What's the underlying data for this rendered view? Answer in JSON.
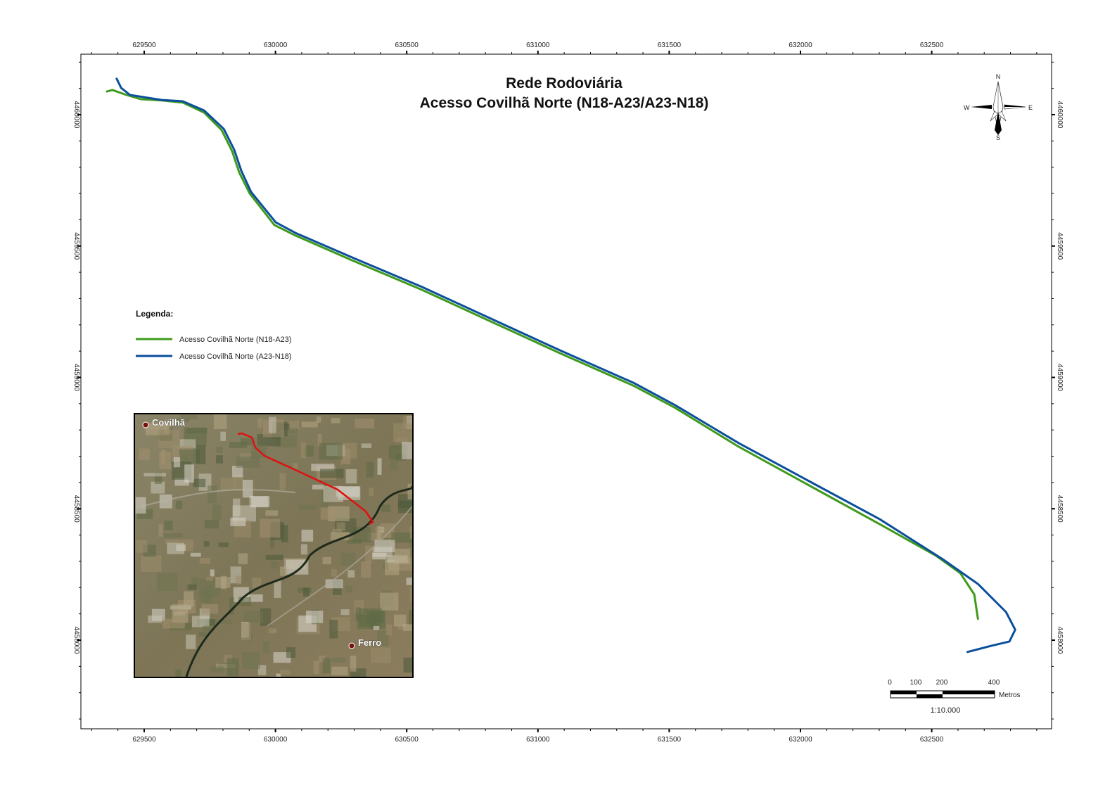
{
  "title": {
    "line1": "Rede Rodoviária",
    "line2": "Acesso Covilhã Norte (N18-A23/A23-N18)"
  },
  "axes": {
    "x_ticks": [
      629500,
      630000,
      630500,
      631000,
      631500,
      632000,
      632500
    ],
    "y_ticks": [
      4460000,
      4459500,
      4459000,
      4458500,
      4458000
    ],
    "x_labels": [
      "629500",
      "630000",
      "630500",
      "631000",
      "631500",
      "632000",
      "632500"
    ],
    "y_labels": [
      "4460000",
      "4459500",
      "4459000",
      "4458500",
      "4458000"
    ],
    "minor_interval": 100
  },
  "legend": {
    "title": "Legenda:",
    "items": [
      {
        "label": "Acesso Covilhã Norte (N18-A23)",
        "color": "#3f9a1c"
      },
      {
        "label": "Acesso Covilhã Norte (A23-N18)",
        "color": "#0b4f9c"
      }
    ]
  },
  "routes": [
    {
      "name": "N18-A23",
      "color": "#3f9a1c",
      "coords": [
        [
          629358,
          4460088
        ],
        [
          629379,
          4460094
        ],
        [
          629433,
          4460075
        ],
        [
          629487,
          4460059
        ],
        [
          629567,
          4460054
        ],
        [
          629647,
          4460046
        ],
        [
          629728,
          4460008
        ],
        [
          629795,
          4459941
        ],
        [
          629835,
          4459861
        ],
        [
          629862,
          4459780
        ],
        [
          629902,
          4459700
        ],
        [
          629996,
          4459580
        ],
        [
          630076,
          4459540
        ],
        [
          630291,
          4459446
        ],
        [
          630559,
          4459333
        ],
        [
          630827,
          4459210
        ],
        [
          631095,
          4459087
        ],
        [
          631363,
          4458969
        ],
        [
          631523,
          4458884
        ],
        [
          631765,
          4458736
        ],
        [
          632033,
          4458589
        ],
        [
          632301,
          4458442
        ],
        [
          632515,
          4458322
        ],
        [
          632609,
          4458255
        ],
        [
          632662,
          4458174
        ],
        [
          632676,
          4458081
        ]
      ]
    },
    {
      "name": "A23-N18",
      "color": "#0b4f9c",
      "coords": [
        [
          629395,
          4460137
        ],
        [
          629412,
          4460102
        ],
        [
          629446,
          4460075
        ],
        [
          629567,
          4460056
        ],
        [
          629647,
          4460051
        ],
        [
          629728,
          4460016
        ],
        [
          629803,
          4459946
        ],
        [
          629843,
          4459866
        ],
        [
          629870,
          4459786
        ],
        [
          629907,
          4459706
        ],
        [
          630001,
          4459590
        ],
        [
          630076,
          4459550
        ],
        [
          630291,
          4459457
        ],
        [
          630559,
          4459344
        ],
        [
          630827,
          4459221
        ],
        [
          631095,
          4459098
        ],
        [
          631363,
          4458980
        ],
        [
          631523,
          4458894
        ],
        [
          631765,
          4458750
        ],
        [
          632033,
          4458605
        ],
        [
          632301,
          4458461
        ],
        [
          632542,
          4458308
        ],
        [
          632676,
          4458214
        ],
        [
          632783,
          4458107
        ],
        [
          632818,
          4458040
        ],
        [
          632796,
          4457995
        ],
        [
          632729,
          4457979
        ],
        [
          632636,
          4457955
        ]
      ]
    }
  ],
  "compass": {
    "n": "N",
    "s": "S",
    "e": "E",
    "w": "W"
  },
  "scale_bar": {
    "labels": [
      "0",
      "100",
      "200",
      "400"
    ],
    "unit": "Metros",
    "ratio": "1:10.000"
  },
  "inset": {
    "places": [
      {
        "name": "Covilhã"
      },
      {
        "name": "Ferro"
      }
    ],
    "route_color": "#e01010"
  }
}
